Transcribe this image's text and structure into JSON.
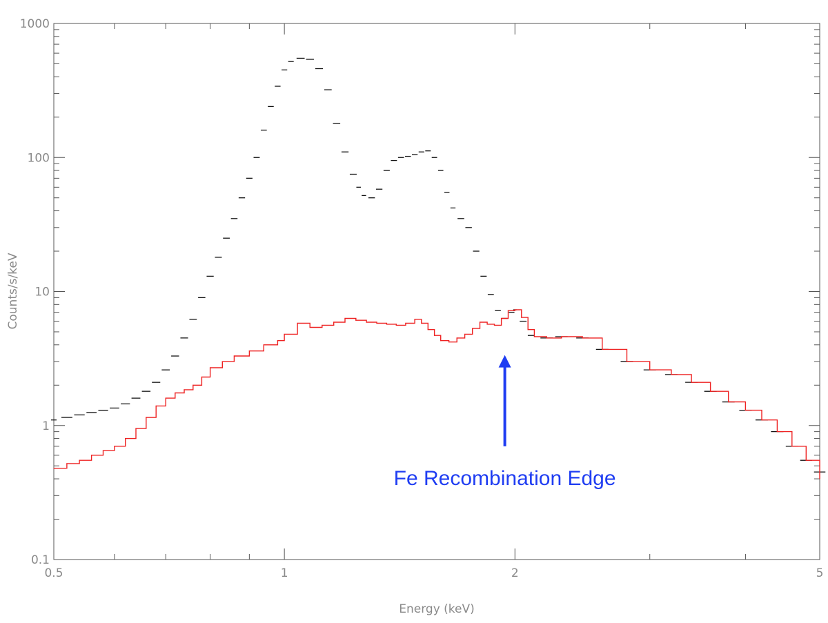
{
  "chart_data": {
    "type": "line",
    "title": "",
    "xlabel": "Energy (keV)",
    "ylabel": "Counts/s/keV",
    "xscale": "log",
    "yscale": "log",
    "xlim": [
      0.5,
      5
    ],
    "ylim": [
      0.1,
      1000
    ],
    "grid": false,
    "x_ticks": [
      {
        "value": 0.5,
        "label": "0.5"
      },
      {
        "value": 1,
        "label": "1"
      },
      {
        "value": 2,
        "label": "2"
      },
      {
        "value": 5,
        "label": "5"
      }
    ],
    "y_ticks": [
      {
        "value": 0.1,
        "label": "0.1"
      },
      {
        "value": 1,
        "label": "1"
      },
      {
        "value": 10,
        "label": "10"
      },
      {
        "value": 100,
        "label": "100"
      },
      {
        "value": 1000,
        "label": "1000"
      }
    ],
    "series": [
      {
        "color": "#111111",
        "style": "data-bins",
        "x": [
          0.5,
          0.52,
          0.54,
          0.56,
          0.58,
          0.6,
          0.62,
          0.64,
          0.66,
          0.68,
          0.7,
          0.72,
          0.74,
          0.76,
          0.78,
          0.8,
          0.82,
          0.84,
          0.86,
          0.88,
          0.9,
          0.92,
          0.94,
          0.96,
          0.98,
          1.0,
          1.02,
          1.05,
          1.08,
          1.11,
          1.14,
          1.17,
          1.2,
          1.23,
          1.25,
          1.27,
          1.3,
          1.33,
          1.36,
          1.39,
          1.42,
          1.45,
          1.48,
          1.51,
          1.54,
          1.57,
          1.6,
          1.63,
          1.66,
          1.7,
          1.74,
          1.78,
          1.82,
          1.86,
          1.9,
          1.94,
          1.98,
          2.0,
          2.05,
          2.1,
          2.2,
          2.3,
          2.45,
          2.6,
          2.8,
          3.0,
          3.2,
          3.4,
          3.6,
          3.8,
          4.0,
          4.2,
          4.4,
          4.6,
          4.8,
          5.0
        ],
        "y": [
          1.1,
          1.15,
          1.2,
          1.25,
          1.3,
          1.35,
          1.45,
          1.6,
          1.8,
          2.1,
          2.6,
          3.3,
          4.5,
          6.2,
          9.0,
          13.0,
          18.0,
          25.0,
          35.0,
          50.0,
          70.0,
          100.0,
          160.0,
          240.0,
          340.0,
          450.0,
          520.0,
          550.0,
          540.0,
          460.0,
          320.0,
          180.0,
          110.0,
          75.0,
          60.0,
          52.0,
          50.0,
          58.0,
          80.0,
          95.0,
          100.0,
          102.0,
          105.0,
          110.0,
          112.0,
          100.0,
          80.0,
          55.0,
          42.0,
          35.0,
          30.0,
          20.0,
          13.0,
          9.5,
          7.2,
          6.3,
          7.0,
          7.3,
          6.0,
          4.7,
          4.5,
          4.6,
          4.5,
          3.7,
          3.0,
          2.6,
          2.4,
          2.1,
          1.8,
          1.5,
          1.3,
          1.1,
          0.9,
          0.7,
          0.55,
          0.45
        ]
      },
      {
        "color": "#ee2222",
        "style": "model-step",
        "x": [
          0.5,
          0.52,
          0.54,
          0.56,
          0.58,
          0.6,
          0.62,
          0.64,
          0.66,
          0.68,
          0.7,
          0.72,
          0.74,
          0.76,
          0.78,
          0.8,
          0.83,
          0.86,
          0.9,
          0.94,
          0.98,
          1.0,
          1.04,
          1.08,
          1.12,
          1.16,
          1.2,
          1.24,
          1.28,
          1.32,
          1.36,
          1.4,
          1.44,
          1.48,
          1.51,
          1.54,
          1.57,
          1.6,
          1.64,
          1.68,
          1.72,
          1.76,
          1.8,
          1.84,
          1.88,
          1.92,
          1.96,
          2.0,
          2.04,
          2.08,
          2.12,
          2.2,
          2.3,
          2.45,
          2.6,
          2.8,
          3.0,
          3.2,
          3.4,
          3.6,
          3.8,
          4.0,
          4.2,
          4.4,
          4.6,
          4.8,
          5.0
        ],
        "y": [
          0.48,
          0.52,
          0.55,
          0.6,
          0.65,
          0.7,
          0.8,
          0.95,
          1.15,
          1.4,
          1.6,
          1.75,
          1.85,
          2.0,
          2.3,
          2.7,
          3.0,
          3.3,
          3.6,
          4.0,
          4.3,
          4.8,
          5.8,
          5.4,
          5.6,
          5.9,
          6.3,
          6.1,
          5.9,
          5.8,
          5.7,
          5.6,
          5.8,
          6.2,
          5.8,
          5.2,
          4.7,
          4.3,
          4.2,
          4.5,
          4.8,
          5.3,
          5.9,
          5.7,
          5.6,
          6.3,
          7.2,
          7.3,
          6.4,
          5.2,
          4.6,
          4.5,
          4.6,
          4.5,
          3.7,
          3.0,
          2.6,
          2.4,
          2.1,
          1.8,
          1.5,
          1.3,
          1.1,
          0.9,
          0.7,
          0.55,
          0.4
        ]
      }
    ],
    "annotations": [
      {
        "text": "Fe Recombination Edge",
        "arrow_to": {
          "x": 1.94,
          "y": 3.2
        },
        "arrow_from": {
          "x": 1.94,
          "y": 0.7
        },
        "color": "#1f3df2"
      }
    ]
  }
}
